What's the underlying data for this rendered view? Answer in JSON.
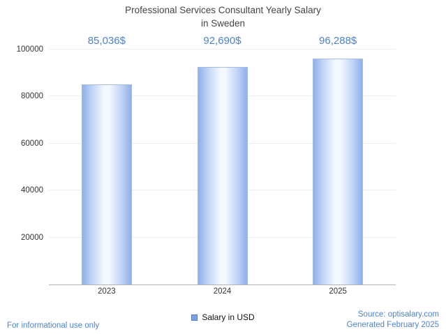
{
  "title": {
    "line1": "Professional Services Consultant Yearly Salary",
    "line2": "in Sweden"
  },
  "chart_data": {
    "type": "bar",
    "title": "Professional Services Consultant Yearly Salary in Sweden",
    "categories": [
      "2023",
      "2024",
      "2025"
    ],
    "values": [
      85036,
      92690,
      96288
    ],
    "value_labels": [
      "85,036$",
      "92,690$",
      "96,288$"
    ],
    "series_name": "Salary in USD",
    "xlabel": "",
    "ylabel": "",
    "ylim": [
      0,
      100000
    ],
    "yticks": [
      20000,
      40000,
      60000,
      80000,
      100000
    ],
    "ytick_labels": [
      "20000",
      "40000",
      "60000",
      "80000",
      "100000"
    ],
    "grid": true,
    "legend_position": "bottom"
  },
  "legend": {
    "label": "Salary in USD"
  },
  "footer": {
    "left": "For informational use only",
    "source": "Source: optisalary.com",
    "generated": "Generated February 2025"
  },
  "colors": {
    "accent_text": "#4d83cb",
    "bar_edge": "#8fb0e8",
    "bar_mid": "#f4f8ff",
    "grid": "#ededed",
    "axis": "#b3b3b3",
    "title_text": "#444444",
    "tick_text": "#333333"
  }
}
